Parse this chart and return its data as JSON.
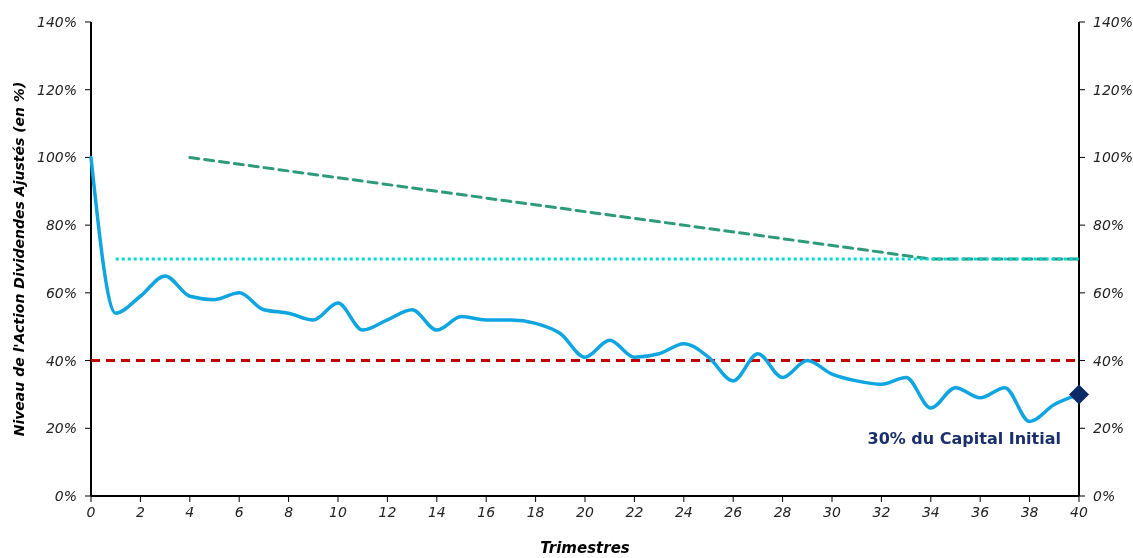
{
  "chart_data": {
    "type": "line",
    "xlabel": "Trimestres",
    "ylabel": "Niveau de l'Action Dividendes Ajustés (en %)",
    "x": [
      0,
      1,
      2,
      3,
      4,
      5,
      6,
      7,
      8,
      9,
      10,
      11,
      12,
      13,
      14,
      15,
      16,
      17,
      18,
      19,
      20,
      21,
      22,
      23,
      24,
      25,
      26,
      27,
      28,
      29,
      30,
      31,
      32,
      33,
      34,
      35,
      36,
      37,
      38,
      39,
      40
    ],
    "xlim": [
      0,
      40
    ],
    "xticks": [
      0,
      2,
      4,
      6,
      8,
      10,
      12,
      14,
      16,
      18,
      20,
      22,
      24,
      26,
      28,
      30,
      32,
      34,
      36,
      38,
      40
    ],
    "ylim": [
      0,
      140
    ],
    "yticks": [
      {
        "value": 0,
        "label": "0%"
      },
      {
        "value": 20,
        "label": "20%"
      },
      {
        "value": 40,
        "label": "40%"
      },
      {
        "value": 60,
        "label": "60%"
      },
      {
        "value": 80,
        "label": "80%"
      },
      {
        "value": 100,
        "label": "100%"
      },
      {
        "value": 120,
        "label": "120%"
      },
      {
        "value": 140,
        "label": "140%"
      }
    ],
    "y2lim": [
      0,
      140
    ],
    "y2ticks": [
      {
        "value": 0,
        "label": "0%"
      },
      {
        "value": 20,
        "label": "20%"
      },
      {
        "value": 40,
        "label": "40%"
      },
      {
        "value": 60,
        "label": "60%"
      },
      {
        "value": 80,
        "label": "80%"
      },
      {
        "value": 100,
        "label": "100%"
      },
      {
        "value": 120,
        "label": "120%"
      },
      {
        "value": 140,
        "label": "140%"
      }
    ],
    "series": [
      {
        "color": "#2e9a7c",
        "line_style": "dashed",
        "x": [
          4,
          34,
          40
        ],
        "values": [
          100,
          70,
          70
        ]
      },
      {
        "color": "#00d8d8",
        "line_style": "dotted",
        "x": [
          1,
          40
        ],
        "values": [
          70,
          70
        ]
      },
      {
        "color": "#0ea5e0",
        "line_style": "solid",
        "values": [
          100,
          54,
          59,
          65,
          59,
          58,
          60,
          55,
          54,
          52,
          57,
          49,
          52,
          55,
          49,
          53,
          52,
          52,
          51,
          48,
          41,
          46,
          41,
          42,
          45,
          41,
          34,
          42,
          35,
          40,
          36,
          34,
          33,
          35,
          26,
          32,
          29,
          32,
          22,
          27,
          30
        ]
      }
    ],
    "ref_lines": [
      {
        "axis": "y",
        "value": 40,
        "color": "#c00000",
        "line_style": "dashed"
      }
    ],
    "annotations": [
      {
        "text": "30% du Capital Initial",
        "x": 40,
        "y": 30
      }
    ],
    "marker": "none"
  }
}
